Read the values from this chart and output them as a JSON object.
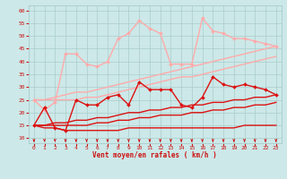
{
  "title": "",
  "xlabel": "Vent moyen/en rafales ( km/h )",
  "xlim": [
    -0.5,
    23.5
  ],
  "ylim": [
    8,
    62
  ],
  "yticks": [
    10,
    15,
    20,
    25,
    30,
    35,
    40,
    45,
    50,
    55,
    60
  ],
  "xticks": [
    0,
    1,
    2,
    3,
    4,
    5,
    6,
    7,
    8,
    9,
    10,
    11,
    12,
    13,
    14,
    15,
    16,
    17,
    18,
    19,
    20,
    21,
    22,
    23
  ],
  "bg_color": "#cce8e8",
  "grid_color": "#aacccc",
  "arrow_color": "#cc1111",
  "series": [
    {
      "x": [
        0,
        1,
        2,
        3,
        4,
        5,
        6,
        7,
        8,
        9,
        10,
        11,
        12,
        13,
        14,
        15,
        16,
        17,
        18,
        19,
        20,
        21,
        22,
        23
      ],
      "y": [
        25,
        21,
        24,
        43,
        43,
        39,
        38,
        40,
        49,
        51,
        56,
        53,
        51,
        39,
        39,
        39,
        57,
        52,
        51,
        49,
        49,
        48,
        47,
        46
      ],
      "color": "#ffaaaa",
      "lw": 1.0,
      "marker": "D",
      "ms": 2.0
    },
    {
      "x": [
        0,
        1,
        2,
        3,
        4,
        5,
        6,
        7,
        8,
        9,
        10,
        11,
        12,
        13,
        14,
        15,
        16,
        17,
        18,
        19,
        20,
        21,
        22,
        23
      ],
      "y": [
        25,
        25,
        26,
        27,
        28,
        28,
        29,
        30,
        31,
        32,
        33,
        34,
        35,
        36,
        37,
        38,
        39,
        40,
        41,
        42,
        43,
        44,
        45,
        46
      ],
      "color": "#ffaaaa",
      "lw": 1.0,
      "marker": null,
      "ms": 0
    },
    {
      "x": [
        0,
        1,
        2,
        3,
        4,
        5,
        6,
        7,
        8,
        9,
        10,
        11,
        12,
        13,
        14,
        15,
        16,
        17,
        18,
        19,
        20,
        21,
        22,
        23
      ],
      "y": [
        25,
        25,
        25,
        25,
        25,
        26,
        26,
        27,
        28,
        29,
        30,
        31,
        32,
        33,
        34,
        34,
        35,
        36,
        37,
        38,
        39,
        40,
        41,
        42
      ],
      "color": "#ffaaaa",
      "lw": 1.0,
      "marker": null,
      "ms": 0
    },
    {
      "x": [
        0,
        1,
        2,
        3,
        4,
        5,
        6,
        7,
        8,
        9,
        10,
        11,
        12,
        13,
        14,
        15,
        16,
        17,
        18,
        19,
        20,
        21,
        22,
        23
      ],
      "y": [
        15,
        22,
        14,
        13,
        25,
        23,
        23,
        26,
        27,
        23,
        32,
        29,
        29,
        29,
        23,
        22,
        26,
        34,
        31,
        30,
        31,
        30,
        29,
        27
      ],
      "color": "#dd1111",
      "lw": 1.0,
      "marker": "D",
      "ms": 2.0
    },
    {
      "x": [
        0,
        1,
        2,
        3,
        4,
        5,
        6,
        7,
        8,
        9,
        10,
        11,
        12,
        13,
        14,
        15,
        16,
        17,
        18,
        19,
        20,
        21,
        22,
        23
      ],
      "y": [
        15,
        15,
        16,
        16,
        17,
        17,
        18,
        18,
        19,
        20,
        20,
        21,
        21,
        22,
        22,
        23,
        23,
        24,
        24,
        25,
        25,
        26,
        26,
        27
      ],
      "color": "#dd1111",
      "lw": 1.0,
      "marker": null,
      "ms": 0
    },
    {
      "x": [
        0,
        1,
        2,
        3,
        4,
        5,
        6,
        7,
        8,
        9,
        10,
        11,
        12,
        13,
        14,
        15,
        16,
        17,
        18,
        19,
        20,
        21,
        22,
        23
      ],
      "y": [
        15,
        15,
        15,
        15,
        15,
        15,
        16,
        16,
        17,
        17,
        18,
        18,
        19,
        19,
        19,
        20,
        20,
        21,
        21,
        22,
        22,
        23,
        23,
        24
      ],
      "color": "#dd1111",
      "lw": 1.0,
      "marker": null,
      "ms": 0
    },
    {
      "x": [
        0,
        1,
        2,
        3,
        4,
        5,
        6,
        7,
        8,
        9,
        10,
        11,
        12,
        13,
        14,
        15,
        16,
        17,
        18,
        19,
        20,
        21,
        22,
        23
      ],
      "y": [
        15,
        14,
        14,
        13,
        13,
        13,
        13,
        13,
        13,
        14,
        14,
        14,
        14,
        14,
        14,
        14,
        14,
        14,
        14,
        14,
        15,
        15,
        15,
        15
      ],
      "color": "#dd1111",
      "lw": 1.0,
      "marker": null,
      "ms": 0
    }
  ]
}
